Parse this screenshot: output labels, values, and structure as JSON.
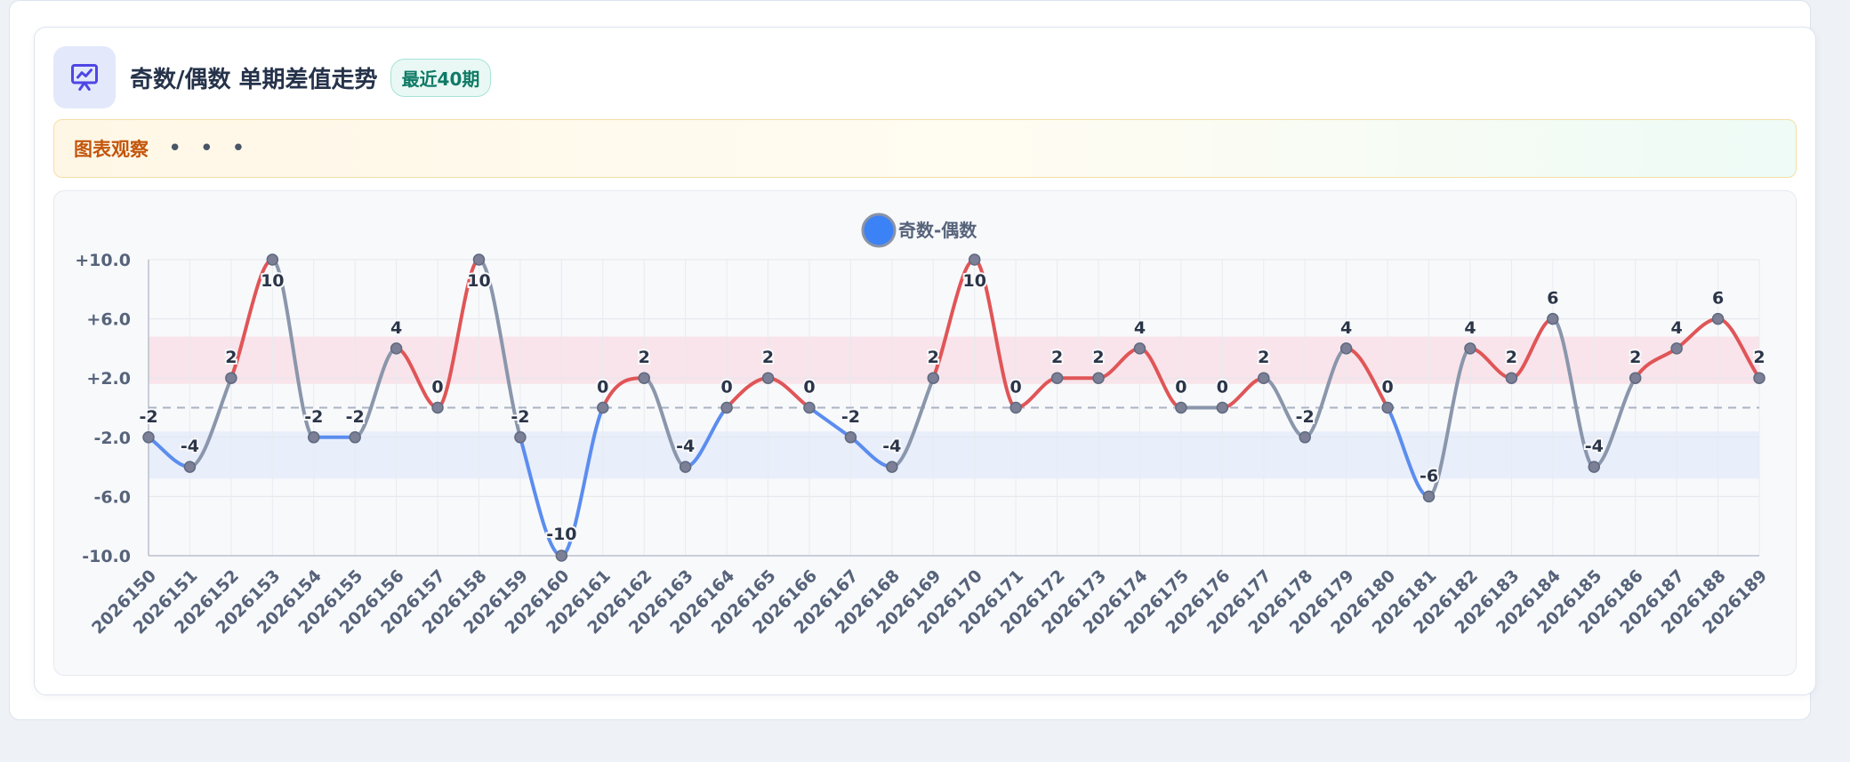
{
  "header": {
    "title": "奇数/偶数 单期差值走势",
    "badge": "最近40期",
    "icon": "presentation-chart-icon"
  },
  "observation": {
    "label": "图表观察",
    "dots": "• • •"
  },
  "colors": {
    "positive": "#e05557",
    "negative": "#5b8def",
    "neutral": "#8a96ab",
    "legend_dot": "#3b82f6",
    "band_positive": "#f8e1e6",
    "band_negative": "#e6ecfa"
  },
  "chart_data": {
    "type": "line",
    "title": "",
    "xlabel": "",
    "ylabel": "",
    "ylim": [
      -10,
      10
    ],
    "yticks": [
      "+10.0",
      "+6.0",
      "+2.0",
      "-2.0",
      "-6.0",
      "-10.0"
    ],
    "legend": {
      "position": "top-center"
    },
    "grid": true,
    "reference_line": 0,
    "bands": [
      {
        "name": "positive",
        "from": 1.6,
        "to": 4.8
      },
      {
        "name": "negative",
        "from": -4.8,
        "to": -1.6
      }
    ],
    "x": [
      "2026150",
      "2026151",
      "2026152",
      "2026153",
      "2026154",
      "2026155",
      "2026156",
      "2026157",
      "2026158",
      "2026159",
      "2026160",
      "2026161",
      "2026162",
      "2026163",
      "2026164",
      "2026165",
      "2026166",
      "2026167",
      "2026168",
      "2026169",
      "2026170",
      "2026171",
      "2026172",
      "2026173",
      "2026174",
      "2026175",
      "2026176",
      "2026177",
      "2026178",
      "2026179",
      "2026180",
      "2026181",
      "2026182",
      "2026183",
      "2026184",
      "2026185",
      "2026186",
      "2026187",
      "2026188",
      "2026189"
    ],
    "series": [
      {
        "name": "奇数-偶数",
        "values": [
          -2,
          -4,
          2,
          10,
          -2,
          -2,
          4,
          0,
          10,
          -2,
          -10,
          0,
          2,
          -4,
          0,
          2,
          0,
          -2,
          -4,
          2,
          10,
          0,
          2,
          2,
          4,
          0,
          0,
          2,
          -2,
          4,
          0,
          -6,
          4,
          2,
          6,
          -4,
          2,
          4,
          6,
          2
        ]
      }
    ]
  }
}
